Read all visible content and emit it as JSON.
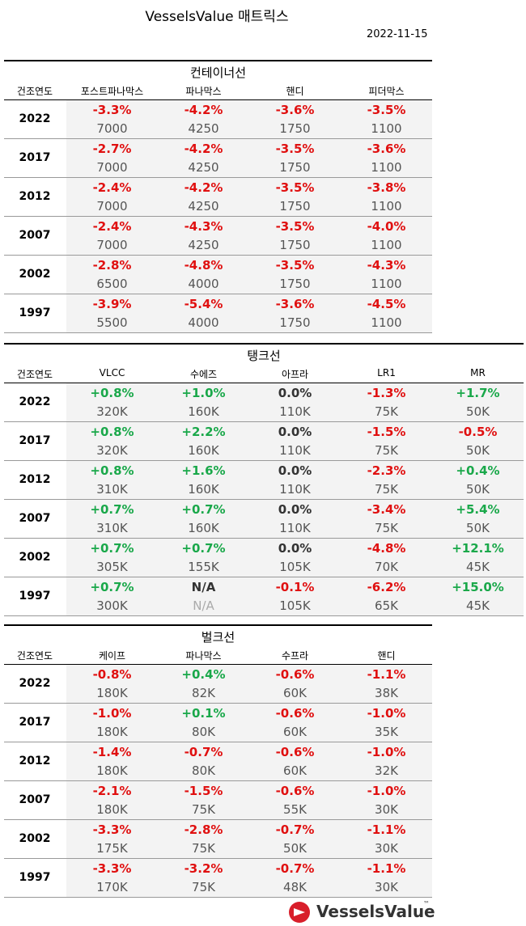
{
  "header": {
    "title": "VesselsValue 매트릭스",
    "date": "2022-11-15"
  },
  "sections": [
    {
      "title": "컨테이너선",
      "headers": [
        "건조연도",
        "포스트파나막스",
        "파나막스",
        "핸디",
        "피더막스"
      ],
      "rows": [
        {
          "year": "2022",
          "cells": [
            [
              "-3.3%",
              "7000"
            ],
            [
              "-4.2%",
              "4250"
            ],
            [
              "-3.6%",
              "1750"
            ],
            [
              "-3.5%",
              "1100"
            ]
          ]
        },
        {
          "year": "2017",
          "cells": [
            [
              "-2.7%",
              "7000"
            ],
            [
              "-4.2%",
              "4250"
            ],
            [
              "-3.5%",
              "1750"
            ],
            [
              "-3.6%",
              "1100"
            ]
          ]
        },
        {
          "year": "2012",
          "cells": [
            [
              "-2.4%",
              "7000"
            ],
            [
              "-4.2%",
              "4250"
            ],
            [
              "-3.5%",
              "1750"
            ],
            [
              "-3.8%",
              "1100"
            ]
          ]
        },
        {
          "year": "2007",
          "cells": [
            [
              "-2.4%",
              "7000"
            ],
            [
              "-4.3%",
              "4250"
            ],
            [
              "-3.5%",
              "1750"
            ],
            [
              "-4.0%",
              "1100"
            ]
          ]
        },
        {
          "year": "2002",
          "cells": [
            [
              "-2.8%",
              "6500"
            ],
            [
              "-4.8%",
              "4000"
            ],
            [
              "-3.5%",
              "1750"
            ],
            [
              "-4.3%",
              "1100"
            ]
          ]
        },
        {
          "year": "1997",
          "cells": [
            [
              "-3.9%",
              "5500"
            ],
            [
              "-5.4%",
              "4000"
            ],
            [
              "-3.6%",
              "1750"
            ],
            [
              "-4.5%",
              "1100"
            ]
          ]
        }
      ]
    },
    {
      "title": "탱크선",
      "headers": [
        "건조연도",
        "VLCC",
        "수에즈",
        "아프라",
        "LR1",
        "MR"
      ],
      "rows": [
        {
          "year": "2022",
          "cells": [
            [
              "+0.8%",
              "320K"
            ],
            [
              "+1.0%",
              "160K"
            ],
            [
              "0.0%",
              "110K"
            ],
            [
              "-1.3%",
              "75K"
            ],
            [
              "+1.7%",
              "50K"
            ]
          ]
        },
        {
          "year": "2017",
          "cells": [
            [
              "+0.8%",
              "320K"
            ],
            [
              "+2.2%",
              "160K"
            ],
            [
              "0.0%",
              "110K"
            ],
            [
              "-1.5%",
              "75K"
            ],
            [
              "-0.5%",
              "50K"
            ]
          ]
        },
        {
          "year": "2012",
          "cells": [
            [
              "+0.8%",
              "310K"
            ],
            [
              "+1.6%",
              "160K"
            ],
            [
              "0.0%",
              "110K"
            ],
            [
              "-2.3%",
              "75K"
            ],
            [
              "+0.4%",
              "50K"
            ]
          ]
        },
        {
          "year": "2007",
          "cells": [
            [
              "+0.7%",
              "310K"
            ],
            [
              "+0.7%",
              "160K"
            ],
            [
              "0.0%",
              "110K"
            ],
            [
              "-3.4%",
              "75K"
            ],
            [
              "+5.4%",
              "50K"
            ]
          ]
        },
        {
          "year": "2002",
          "cells": [
            [
              "+0.7%",
              "305K"
            ],
            [
              "+0.7%",
              "155K"
            ],
            [
              "0.0%",
              "105K"
            ],
            [
              "-4.8%",
              "70K"
            ],
            [
              "+12.1%",
              "45K"
            ]
          ]
        },
        {
          "year": "1997",
          "cells": [
            [
              "+0.7%",
              "300K"
            ],
            [
              "N/A",
              "N/A"
            ],
            [
              "-0.1%",
              "105K"
            ],
            [
              "-6.2%",
              "65K"
            ],
            [
              "+15.0%",
              "45K"
            ]
          ]
        }
      ]
    },
    {
      "title": "벌크선",
      "headers": [
        "건조연도",
        "케이프",
        "파나막스",
        "수프라",
        "핸디"
      ],
      "rows": [
        {
          "year": "2022",
          "cells": [
            [
              "-0.8%",
              "180K"
            ],
            [
              "+0.4%",
              "82K"
            ],
            [
              "-0.6%",
              "60K"
            ],
            [
              "-1.1%",
              "38K"
            ]
          ]
        },
        {
          "year": "2017",
          "cells": [
            [
              "-1.0%",
              "180K"
            ],
            [
              "+0.1%",
              "80K"
            ],
            [
              "-0.6%",
              "60K"
            ],
            [
              "-1.0%",
              "35K"
            ]
          ]
        },
        {
          "year": "2012",
          "cells": [
            [
              "-1.4%",
              "180K"
            ],
            [
              "-0.7%",
              "80K"
            ],
            [
              "-0.6%",
              "60K"
            ],
            [
              "-1.0%",
              "32K"
            ]
          ]
        },
        {
          "year": "2007",
          "cells": [
            [
              "-2.1%",
              "180K"
            ],
            [
              "-1.5%",
              "75K"
            ],
            [
              "-0.6%",
              "55K"
            ],
            [
              "-1.0%",
              "30K"
            ]
          ]
        },
        {
          "year": "2002",
          "cells": [
            [
              "-3.3%",
              "175K"
            ],
            [
              "-2.8%",
              "75K"
            ],
            [
              "-0.7%",
              "50K"
            ],
            [
              "-1.1%",
              "30K"
            ]
          ]
        },
        {
          "year": "1997",
          "cells": [
            [
              "-3.3%",
              "170K"
            ],
            [
              "-3.2%",
              "75K"
            ],
            [
              "-0.7%",
              "48K"
            ],
            [
              "-1.1%",
              "30K"
            ]
          ]
        }
      ]
    }
  ],
  "logo": {
    "name": "VesselsValue",
    "mark": "™"
  }
}
